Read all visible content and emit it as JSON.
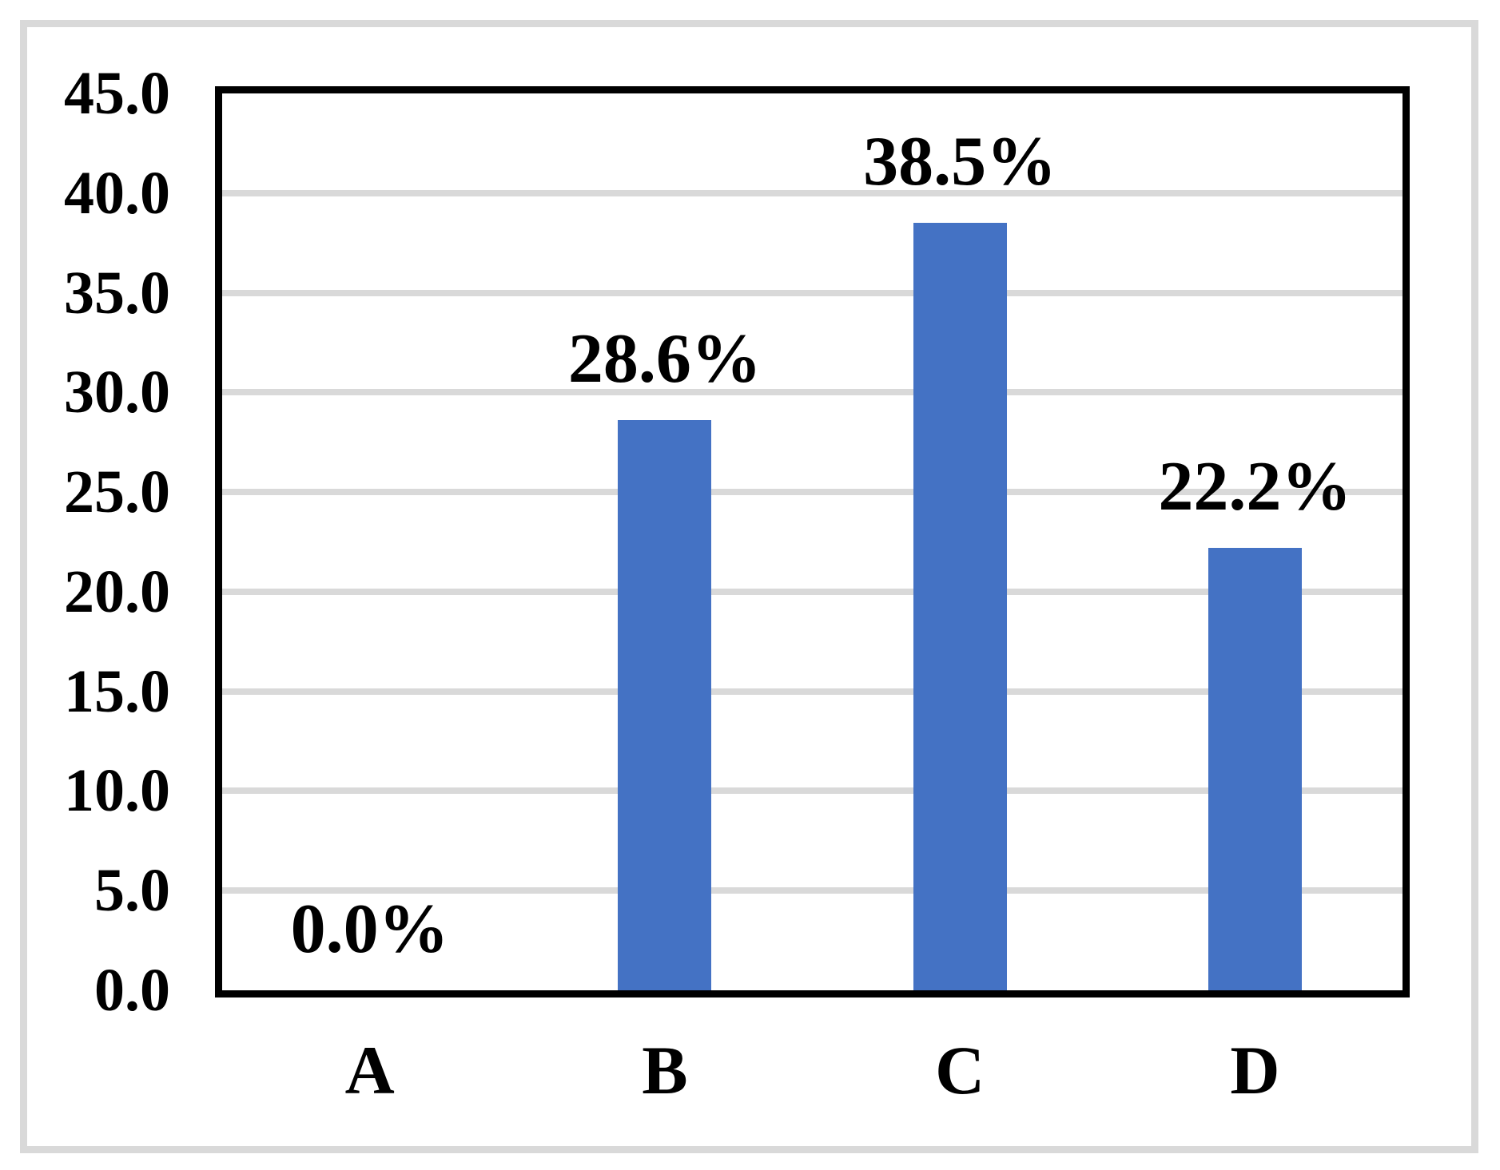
{
  "chart_data": {
    "type": "bar",
    "categories": [
      "A",
      "B",
      "C",
      "D"
    ],
    "values": [
      0.0,
      28.6,
      38.5,
      22.2
    ],
    "data_labels": [
      "0.0%",
      "28.6%",
      "38.5%",
      "22.2%"
    ],
    "title": "",
    "xlabel": "",
    "ylabel": "",
    "ylim": [
      0.0,
      45.0
    ],
    "ytick_step": 5.0,
    "ytick_labels": [
      "45.0",
      "40.0",
      "35.0",
      "30.0",
      "25.0",
      "20.0",
      "15.0",
      "10.0",
      "5.0",
      "0.0"
    ],
    "grid": "horizontal",
    "legend_position": "none",
    "colors": {
      "bar": "#4472C4",
      "gridline": "#D9D9D9",
      "outer_frame": "#D9D9D9",
      "plot_border": "#000000",
      "text": "#000000",
      "background": "#FFFFFF"
    }
  }
}
